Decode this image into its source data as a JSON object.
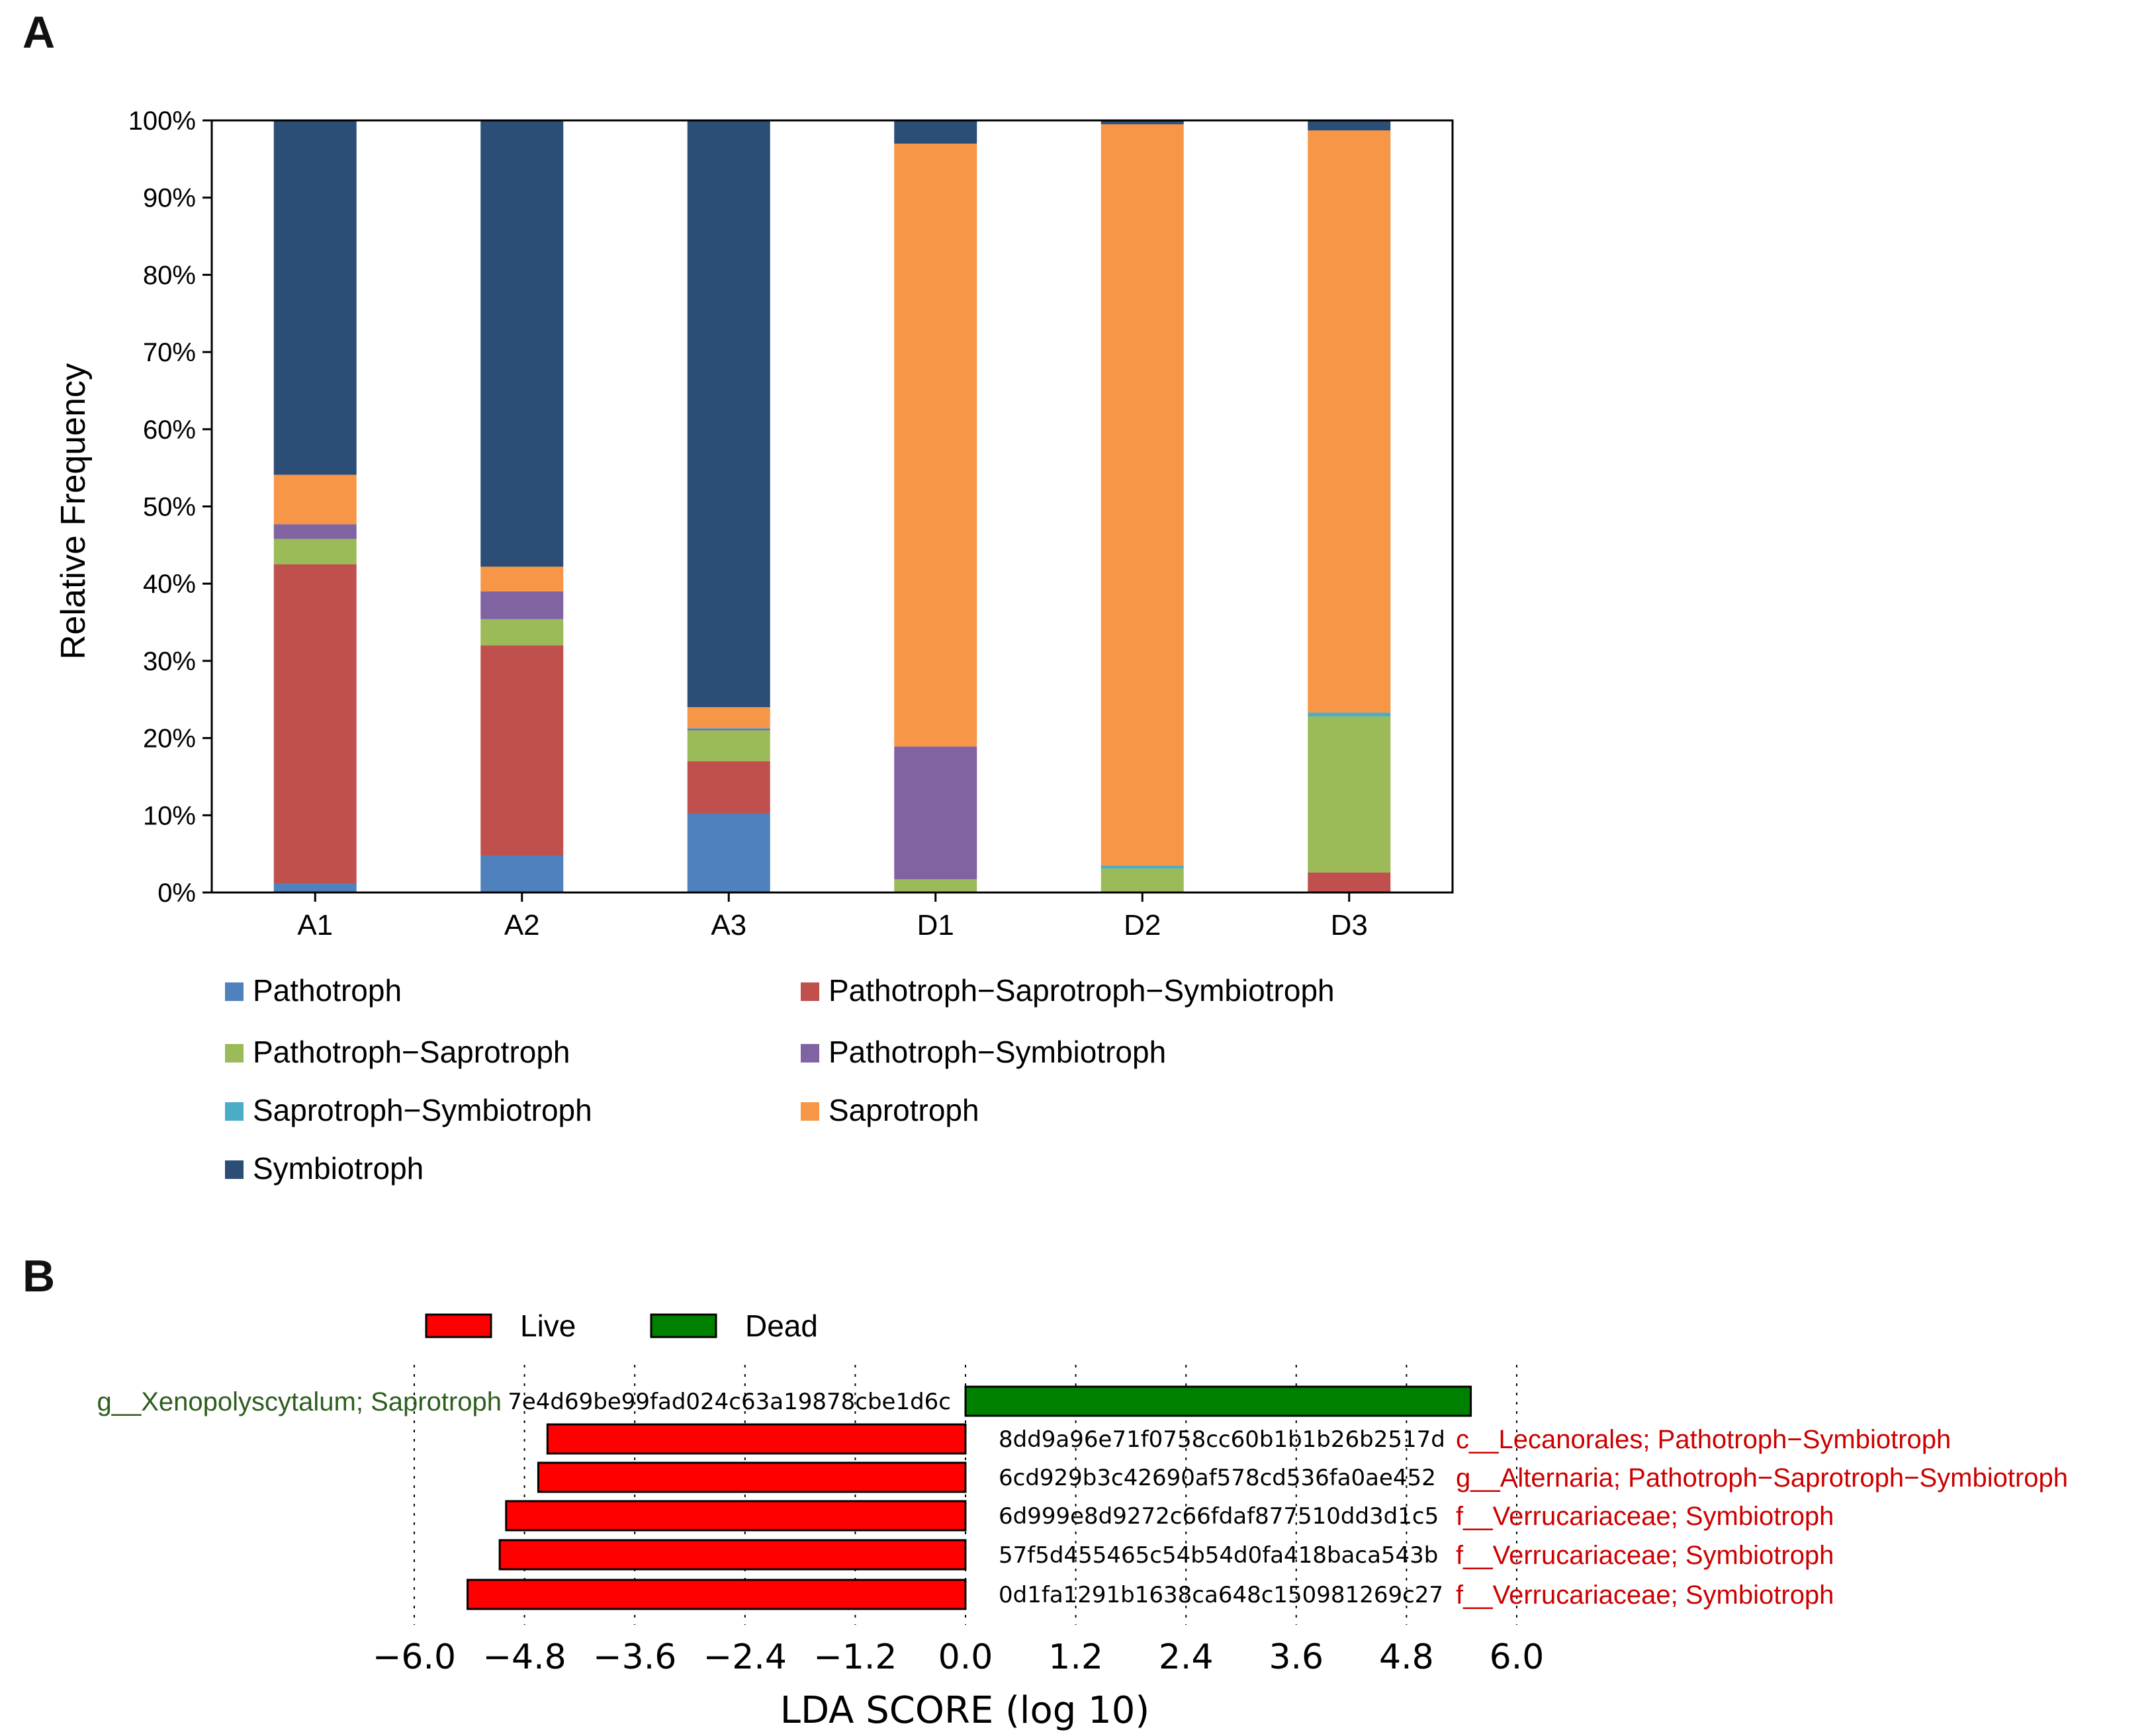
{
  "panel_labels": {
    "a": "A",
    "b": "B"
  },
  "chart_data": [
    {
      "type": "bar",
      "stacked": true,
      "ylabel": "Relative Frequency",
      "ylim": [
        0,
        100
      ],
      "yticks": [
        "0%",
        "10%",
        "20%",
        "30%",
        "40%",
        "50%",
        "60%",
        "70%",
        "80%",
        "90%",
        "100%"
      ],
      "categories": [
        "A1",
        "A2",
        "A3",
        "D1",
        "D2",
        "D3"
      ],
      "series": [
        {
          "name": "Pathotroph",
          "color": "#4f81bd",
          "values": [
            1.2,
            4.8,
            10.2,
            0,
            0,
            0
          ]
        },
        {
          "name": "Pathotroph−Saprotroph−Symbiotroph",
          "color": "#c0504d",
          "values": [
            41.3,
            27.2,
            6.8,
            0,
            0,
            2.6
          ]
        },
        {
          "name": "Pathotroph−Saprotroph",
          "color": "#9bbb59",
          "values": [
            3.3,
            3.4,
            4.0,
            1.7,
            3.1,
            20.2
          ]
        },
        {
          "name": "Pathotroph−Symbiotroph",
          "color": "#8064a2",
          "values": [
            1.9,
            3.6,
            0.2,
            17.2,
            0,
            0
          ]
        },
        {
          "name": "Saprotroph−Symbiotroph",
          "color": "#4bacc6",
          "values": [
            0,
            0,
            0.1,
            0,
            0.4,
            0.5
          ]
        },
        {
          "name": "Saprotroph",
          "color": "#f79646",
          "values": [
            6.4,
            3.2,
            2.7,
            78.1,
            96.0,
            75.4
          ]
        },
        {
          "name": "Symbiotroph",
          "color": "#2c4d75",
          "values": [
            45.9,
            57.8,
            76.0,
            3.0,
            0.5,
            1.3
          ]
        }
      ]
    },
    {
      "type": "bar",
      "orientation": "horizontal",
      "xlabel": "LDA SCORE (log 10)",
      "xlim": [
        -6.0,
        6.0
      ],
      "xticks": [
        "−6.0",
        "−4.8",
        "−3.6",
        "−2.4",
        "−1.2",
        "0.0",
        "1.2",
        "2.4",
        "3.6",
        "4.8",
        "6.0"
      ],
      "legend": [
        {
          "name": "Live",
          "color": "#ff0000"
        },
        {
          "name": "Dead",
          "color": "#008000"
        }
      ],
      "features": [
        {
          "id": "7e4d69be99fad024c63a19878cbe1d6c",
          "label": "g__Xenopolyscytalum; Saprotroph",
          "value": 5.5,
          "group": "Dead",
          "label_color": "#2d5e1e"
        },
        {
          "id": "8dd9a96e71f0758cc60b1b1b26b2517d",
          "label": "c__Lecanorales; Pathotroph−Symbiotroph",
          "value": -4.55,
          "group": "Live",
          "label_color": "#cc0000"
        },
        {
          "id": "6cd929b3c42690af578cd536fa0ae452",
          "label": "g__Alternaria; Pathotroph−Saprotroph−Symbiotroph",
          "value": -4.65,
          "group": "Live",
          "label_color": "#cc0000"
        },
        {
          "id": "6d999e8d9272c66fdaf877510dd3d1c5",
          "label": "f__Verrucariaceae; Symbiotroph",
          "value": -5.0,
          "group": "Live",
          "label_color": "#cc0000"
        },
        {
          "id": "57f5d455465c54b54d0fa418baca543b",
          "label": "f__Verrucariaceae; Symbiotroph",
          "value": -5.07,
          "group": "Live",
          "label_color": "#cc0000"
        },
        {
          "id": "0d1fa1291b1638ca648c150981269c27",
          "label": "f__Verrucariaceae; Symbiotroph",
          "value": -5.42,
          "group": "Live",
          "label_color": "#cc0000"
        }
      ]
    }
  ]
}
